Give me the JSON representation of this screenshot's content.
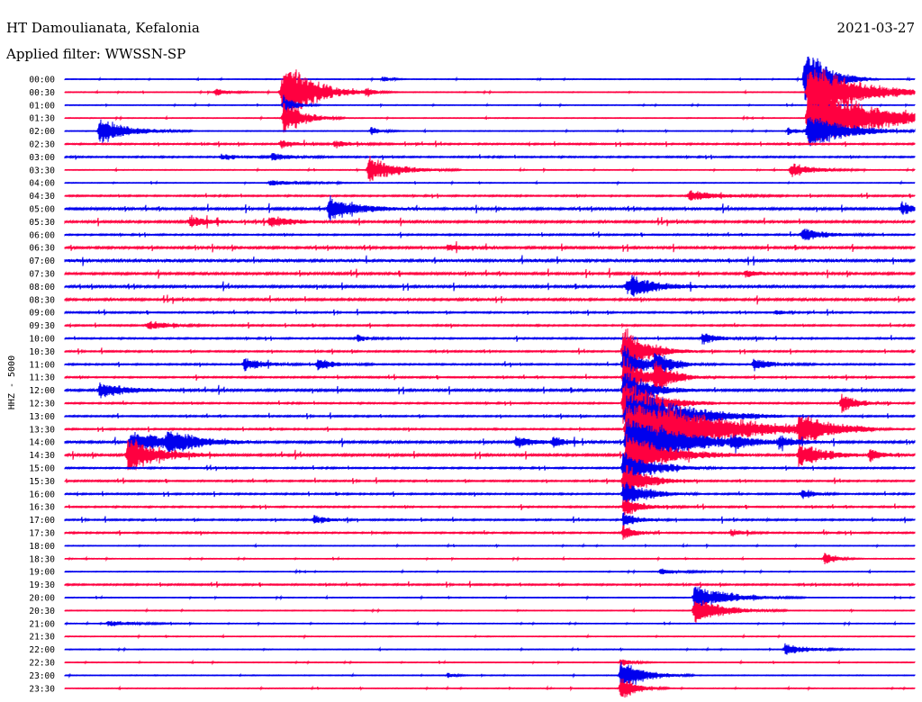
{
  "header": {
    "station": "HT Damoulianata, Kefalonia",
    "date": "2021-03-27",
    "filter": "Applied filter: WWSSN-SP"
  },
  "chart_data": {
    "type": "line",
    "title": "HT Damoulianata, Kefalonia",
    "subtitle": "Applied filter: WWSSN-SP",
    "ylabel": "HHZ - 5000",
    "xlabel": "",
    "grid": false,
    "legend": "none",
    "trace_colors": [
      "#0000ee",
      "#ff0040"
    ],
    "row_labels": [
      "00:00",
      "00:30",
      "01:00",
      "01:30",
      "02:00",
      "02:30",
      "03:00",
      "03:30",
      "04:00",
      "04:30",
      "05:00",
      "05:30",
      "06:00",
      "06:30",
      "07:00",
      "07:30",
      "08:00",
      "08:30",
      "09:00",
      "09:30",
      "10:00",
      "10:30",
      "11:00",
      "11:30",
      "12:00",
      "12:30",
      "13:00",
      "13:30",
      "14:00",
      "14:30",
      "15:00",
      "15:30",
      "16:00",
      "16:30",
      "17:00",
      "17:30",
      "18:00",
      "18:30",
      "19:00",
      "19:30",
      "20:00",
      "20:30",
      "21:00",
      "21:30",
      "22:00",
      "22:30",
      "23:00",
      "23:30"
    ],
    "noise_level": [
      1,
      1,
      1,
      1,
      1,
      2,
      2,
      1,
      1,
      2,
      3,
      3,
      2,
      3,
      4,
      3,
      3,
      3,
      2,
      2,
      2,
      2,
      2,
      2,
      3,
      2,
      2,
      2,
      3,
      3,
      2,
      2,
      2,
      2,
      2,
      2,
      1,
      1,
      1,
      2,
      1,
      1,
      1,
      1,
      1,
      1,
      1,
      1
    ],
    "events": [
      {
        "row": 0,
        "minute": 11.2,
        "amp": 4,
        "dur": 0.4
      },
      {
        "row": 0,
        "minute": 26.1,
        "amp": 45,
        "dur": 1.2
      },
      {
        "row": 1,
        "minute": 7.7,
        "amp": 45,
        "dur": 1.5
      },
      {
        "row": 1,
        "minute": 7.6,
        "amp": 12,
        "dur": 0.8
      },
      {
        "row": 1,
        "minute": 26.2,
        "amp": 40,
        "dur": 2.5
      },
      {
        "row": 1,
        "minute": 5.3,
        "amp": 5,
        "dur": 0.8
      },
      {
        "row": 1,
        "minute": 10.6,
        "amp": 5,
        "dur": 0.6
      },
      {
        "row": 2,
        "minute": 7.7,
        "amp": 15,
        "dur": 0.6
      },
      {
        "row": 3,
        "minute": 7.7,
        "amp": 25,
        "dur": 1.0
      },
      {
        "row": 3,
        "minute": 26.2,
        "amp": 45,
        "dur": 3.5
      },
      {
        "row": 4,
        "minute": 1.2,
        "amp": 18,
        "dur": 1.5
      },
      {
        "row": 4,
        "minute": 10.8,
        "amp": 5,
        "dur": 0.6
      },
      {
        "row": 4,
        "minute": 25.5,
        "amp": 5,
        "dur": 0.6
      },
      {
        "row": 4,
        "minute": 26.2,
        "amp": 25,
        "dur": 2.0
      },
      {
        "row": 5,
        "minute": 7.6,
        "amp": 6,
        "dur": 0.8
      },
      {
        "row": 5,
        "minute": 9.5,
        "amp": 4,
        "dur": 1.0
      },
      {
        "row": 6,
        "minute": 5.5,
        "amp": 4,
        "dur": 1.2
      },
      {
        "row": 6,
        "minute": 7.3,
        "amp": 5,
        "dur": 1.0
      },
      {
        "row": 7,
        "minute": 10.7,
        "amp": 18,
        "dur": 1.5
      },
      {
        "row": 7,
        "minute": 25.6,
        "amp": 10,
        "dur": 1.2
      },
      {
        "row": 8,
        "minute": 7.2,
        "amp": 4,
        "dur": 1.5
      },
      {
        "row": 9,
        "minute": 22.0,
        "amp": 7,
        "dur": 1.5
      },
      {
        "row": 10,
        "minute": 9.3,
        "amp": 16,
        "dur": 1.5
      },
      {
        "row": 10,
        "minute": 29.5,
        "amp": 7,
        "dur": 0.8
      },
      {
        "row": 11,
        "minute": 4.4,
        "amp": 9,
        "dur": 0.8
      },
      {
        "row": 11,
        "minute": 7.2,
        "amp": 8,
        "dur": 1.2
      },
      {
        "row": 12,
        "minute": 26.0,
        "amp": 9,
        "dur": 1.2
      },
      {
        "row": 13,
        "minute": 13.5,
        "amp": 4,
        "dur": 1.0
      },
      {
        "row": 15,
        "minute": 24.0,
        "amp": 5,
        "dur": 0.8
      },
      {
        "row": 16,
        "minute": 20.0,
        "amp": 12,
        "dur": 1.5
      },
      {
        "row": 16,
        "minute": 19.8,
        "amp": 10,
        "dur": 0.5
      },
      {
        "row": 18,
        "minute": 25.1,
        "amp": 4,
        "dur": 0.4
      },
      {
        "row": 19,
        "minute": 2.9,
        "amp": 7,
        "dur": 1.0
      },
      {
        "row": 20,
        "minute": 10.3,
        "amp": 5,
        "dur": 0.6
      },
      {
        "row": 20,
        "minute": 22.5,
        "amp": 7,
        "dur": 1.0
      },
      {
        "row": 21,
        "minute": 19.7,
        "amp": 35,
        "dur": 1.2
      },
      {
        "row": 22,
        "minute": 6.3,
        "amp": 9,
        "dur": 1.0
      },
      {
        "row": 22,
        "minute": 8.9,
        "amp": 9,
        "dur": 0.9
      },
      {
        "row": 22,
        "minute": 24.3,
        "amp": 8,
        "dur": 1.0
      },
      {
        "row": 22,
        "minute": 19.7,
        "amp": 25,
        "dur": 1.0
      },
      {
        "row": 22,
        "minute": 20.8,
        "amp": 15,
        "dur": 1.0
      },
      {
        "row": 23,
        "minute": 19.7,
        "amp": 30,
        "dur": 1.0
      },
      {
        "row": 23,
        "minute": 20.8,
        "amp": 20,
        "dur": 1.0
      },
      {
        "row": 24,
        "minute": 1.2,
        "amp": 10,
        "dur": 1.5
      },
      {
        "row": 24,
        "minute": 19.7,
        "amp": 30,
        "dur": 1.2
      },
      {
        "row": 25,
        "minute": 19.7,
        "amp": 40,
        "dur": 1.5
      },
      {
        "row": 25,
        "minute": 27.4,
        "amp": 13,
        "dur": 0.8
      },
      {
        "row": 26,
        "minute": 19.8,
        "amp": 50,
        "dur": 2.5
      },
      {
        "row": 27,
        "minute": 19.8,
        "amp": 55,
        "dur": 4.0
      },
      {
        "row": 27,
        "minute": 25.9,
        "amp": 18,
        "dur": 1.5
      },
      {
        "row": 28,
        "minute": 2.3,
        "amp": 15,
        "dur": 2.0
      },
      {
        "row": 28,
        "minute": 3.6,
        "amp": 14,
        "dur": 1.5
      },
      {
        "row": 28,
        "minute": 15.9,
        "amp": 7,
        "dur": 1.0
      },
      {
        "row": 28,
        "minute": 17.2,
        "amp": 6,
        "dur": 0.8
      },
      {
        "row": 28,
        "minute": 19.8,
        "amp": 45,
        "dur": 2.5
      },
      {
        "row": 28,
        "minute": 23.5,
        "amp": 6,
        "dur": 1.0
      },
      {
        "row": 28,
        "minute": 25.2,
        "amp": 8,
        "dur": 1.0
      },
      {
        "row": 29,
        "minute": 2.2,
        "amp": 25,
        "dur": 1.5
      },
      {
        "row": 29,
        "minute": 19.8,
        "amp": 30,
        "dur": 2.0
      },
      {
        "row": 29,
        "minute": 25.9,
        "amp": 18,
        "dur": 1.2
      },
      {
        "row": 29,
        "minute": 28.4,
        "amp": 10,
        "dur": 0.6
      },
      {
        "row": 30,
        "minute": 19.7,
        "amp": 25,
        "dur": 1.5
      },
      {
        "row": 31,
        "minute": 19.7,
        "amp": 25,
        "dur": 1.2
      },
      {
        "row": 32,
        "minute": 19.7,
        "amp": 20,
        "dur": 1.2
      },
      {
        "row": 32,
        "minute": 26.0,
        "amp": 8,
        "dur": 0.6
      },
      {
        "row": 33,
        "minute": 19.7,
        "amp": 12,
        "dur": 1.0
      },
      {
        "row": 34,
        "minute": 8.8,
        "amp": 8,
        "dur": 0.6
      },
      {
        "row": 34,
        "minute": 19.7,
        "amp": 10,
        "dur": 0.8
      },
      {
        "row": 35,
        "minute": 19.7,
        "amp": 10,
        "dur": 0.6
      },
      {
        "row": 35,
        "minute": 23.5,
        "amp": 5,
        "dur": 0.6
      },
      {
        "row": 37,
        "minute": 26.8,
        "amp": 10,
        "dur": 0.6
      },
      {
        "row": 38,
        "minute": 21.0,
        "amp": 4,
        "dur": 1.2
      },
      {
        "row": 40,
        "minute": 22.2,
        "amp": 18,
        "dur": 1.8
      },
      {
        "row": 41,
        "minute": 22.2,
        "amp": 18,
        "dur": 1.5
      },
      {
        "row": 42,
        "minute": 1.5,
        "amp": 4,
        "dur": 1.5
      },
      {
        "row": 44,
        "minute": 25.4,
        "amp": 8,
        "dur": 1.2
      },
      {
        "row": 45,
        "minute": 19.6,
        "amp": 5,
        "dur": 0.6
      },
      {
        "row": 46,
        "minute": 19.6,
        "amp": 22,
        "dur": 1.2
      },
      {
        "row": 46,
        "minute": 13.5,
        "amp": 4,
        "dur": 0.4
      },
      {
        "row": 47,
        "minute": 19.6,
        "amp": 18,
        "dur": 0.8
      }
    ]
  }
}
